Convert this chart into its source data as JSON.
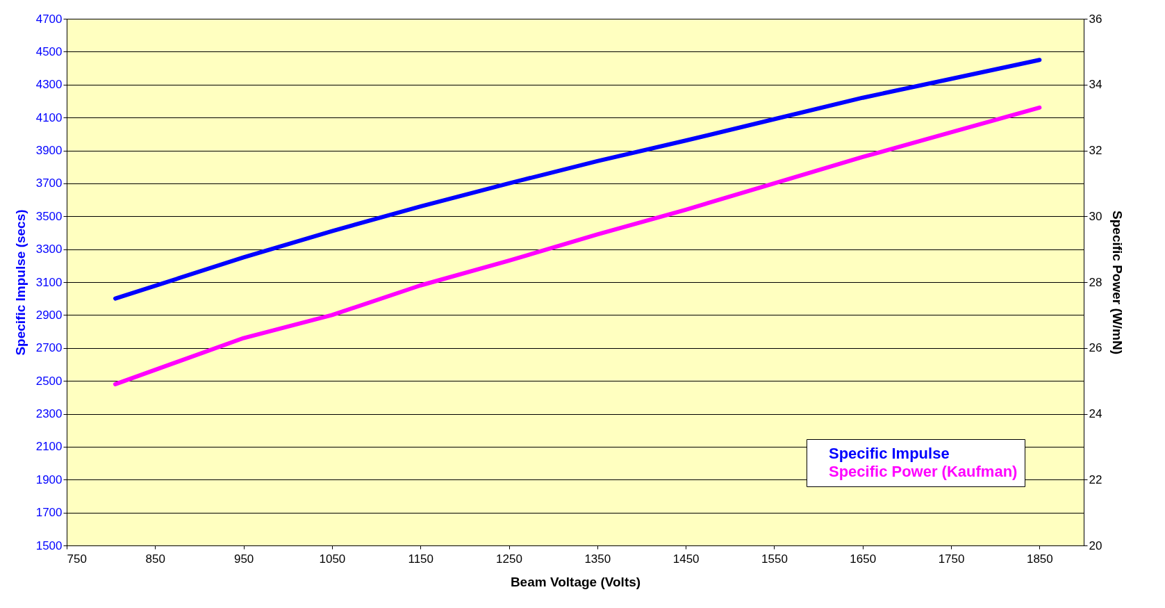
{
  "chart_data": {
    "type": "line",
    "xlabel": "Beam Voltage (Volts)",
    "ylabel": "Specific Impulse (secs)",
    "y2label": "Specific Power (W/mN)",
    "xlim": [
      750,
      1900
    ],
    "xticks": [
      750,
      850,
      950,
      1050,
      1150,
      1250,
      1350,
      1450,
      1550,
      1650,
      1750,
      1850
    ],
    "ylim": [
      1500,
      4700
    ],
    "yticks": [
      1500,
      1700,
      1900,
      2100,
      2300,
      2500,
      2700,
      2900,
      3100,
      3300,
      3500,
      3700,
      3900,
      4100,
      4300,
      4500,
      4700
    ],
    "y2lim": [
      20,
      36
    ],
    "y2ticks": [
      20,
      22,
      24,
      26,
      28,
      30,
      32,
      34,
      36
    ],
    "grid": "y",
    "legend": "bottom right",
    "line_style": "solid",
    "marker": "none",
    "x": [
      805,
      950,
      1050,
      1150,
      1250,
      1350,
      1450,
      1550,
      1650,
      1750,
      1850
    ],
    "series": [
      {
        "name": "Specific Impulse",
        "color": "#0000ff",
        "values": [
          3000,
          3250,
          3410,
          3560,
          3700,
          3835,
          3960,
          4090,
          4220,
          4335,
          4450
        ]
      },
      {
        "name": "Specific Power (Kaufman)",
        "color": "#ff00ff",
        "axis": "y2",
        "values": [
          24.9,
          26.3,
          27.0,
          27.9,
          28.65,
          29.45,
          30.2,
          31.0,
          31.8,
          32.55,
          33.3
        ]
      }
    ]
  }
}
